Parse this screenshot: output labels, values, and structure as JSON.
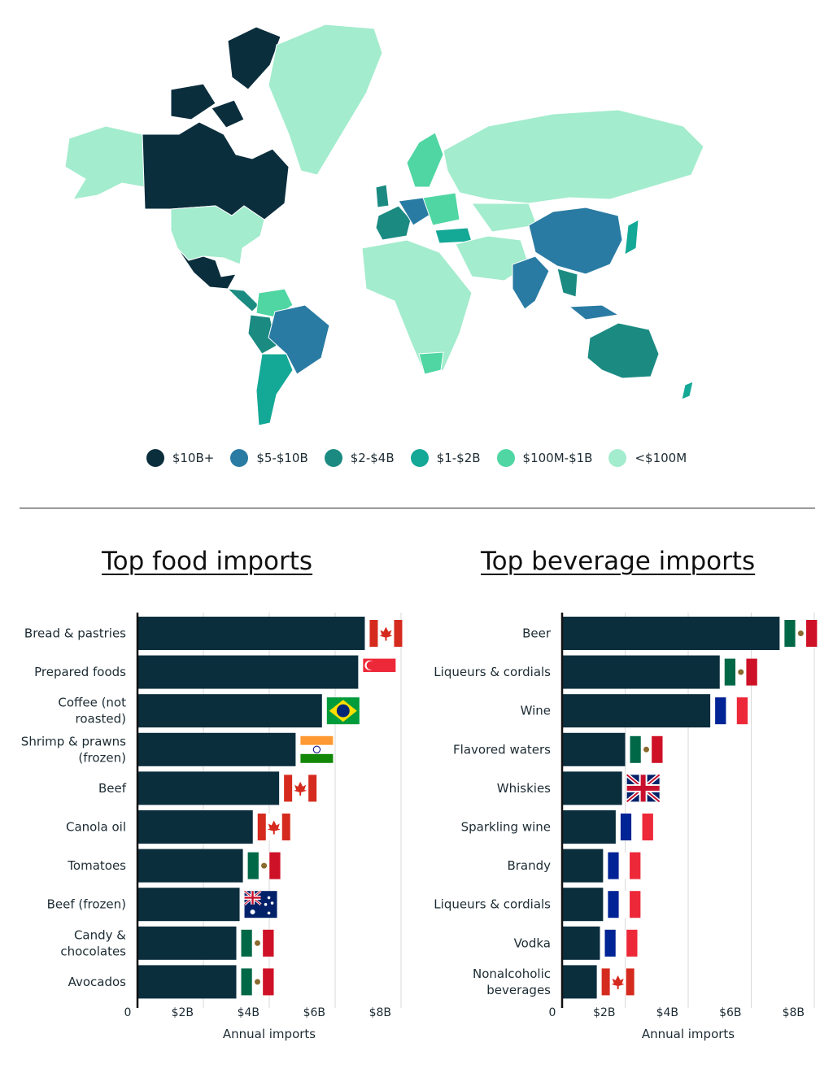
{
  "map": {
    "legend": [
      {
        "label": "$10B+",
        "color": "#0b2e3d"
      },
      {
        "label": "$5-$10B",
        "color": "#2a7ba3"
      },
      {
        "label": "$2-$4B",
        "color": "#1b8b82"
      },
      {
        "label": "$1-$2B",
        "color": "#14a896"
      },
      {
        "label": "$100M-$1B",
        "color": "#4fd6a3"
      },
      {
        "label": "<$100M",
        "color": "#a3eccd"
      }
    ]
  },
  "chart_data": [
    {
      "type": "bar",
      "orientation": "horizontal",
      "title": "Top food imports",
      "xlabel": "Annual imports",
      "xlim": [
        0,
        8
      ],
      "x_ticks": [
        "0",
        "$2B",
        "$4B",
        "$6B",
        "$8B"
      ],
      "grid": true,
      "bar_color": "#0b2e3d",
      "categories": [
        [
          "Bread & pastries"
        ],
        [
          "Prepared foods"
        ],
        [
          "Coffee (not",
          "roasted)"
        ],
        [
          "Shrimp & prawns",
          "(frozen)"
        ],
        [
          "Beef"
        ],
        [
          "Canola oil"
        ],
        [
          "Tomatoes"
        ],
        [
          "Beef (frozen)"
        ],
        [
          "Candy &",
          "chocolates"
        ],
        [
          "Avocados"
        ]
      ],
      "values": [
        6.9,
        6.7,
        5.6,
        4.8,
        4.3,
        3.5,
        3.2,
        3.1,
        3.0,
        3.0
      ],
      "flags": [
        "canada",
        "singapore",
        "brazil",
        "india",
        "canada",
        "canada",
        "mexico",
        "australia",
        "mexico",
        "mexico"
      ]
    },
    {
      "type": "bar",
      "orientation": "horizontal",
      "title": "Top beverage imports",
      "xlabel": "Annual imports",
      "xlim": [
        0,
        8
      ],
      "x_ticks": [
        "0",
        "$2B",
        "$4B",
        "$6B",
        "$8B"
      ],
      "grid": true,
      "bar_color": "#0b2e3d",
      "categories": [
        [
          "Beer"
        ],
        [
          "Liqueurs & cordials"
        ],
        [
          "Wine"
        ],
        [
          "Flavored waters"
        ],
        [
          "Whiskies"
        ],
        [
          "Sparkling wine"
        ],
        [
          "Brandy"
        ],
        [
          "Liqueurs & cordials"
        ],
        [
          "Vodka"
        ],
        [
          "Nonalcoholic",
          "beverages"
        ]
      ],
      "values": [
        6.9,
        5.0,
        4.7,
        2.0,
        1.9,
        1.7,
        1.3,
        1.3,
        1.2,
        1.1
      ],
      "flags": [
        "mexico",
        "mexico",
        "france",
        "mexico",
        "uk",
        "france",
        "france",
        "france",
        "france",
        "canada"
      ]
    }
  ]
}
